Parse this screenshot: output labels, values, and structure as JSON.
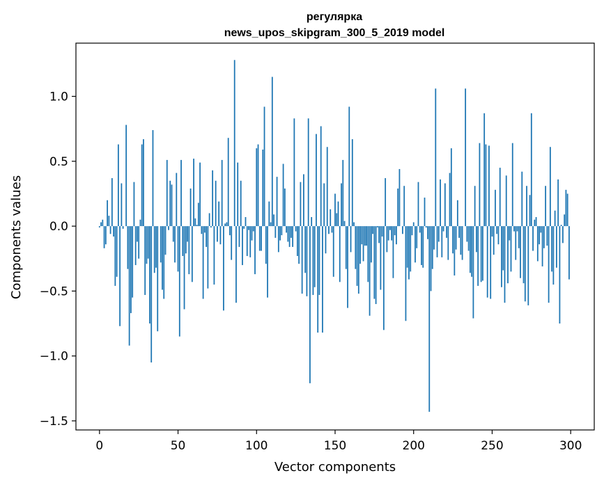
{
  "chart_data": {
    "type": "bar",
    "title": "регулярка",
    "subtitle": "news_upos_skipgram_300_5_2019 model",
    "xlabel": "Vector components",
    "ylabel": "Components values",
    "xlim": [
      -15,
      315
    ],
    "ylim": [
      -1.57,
      1.41
    ],
    "xticks": [
      0,
      50,
      100,
      150,
      200,
      250,
      300
    ],
    "xtick_labels": [
      "0",
      "50",
      "100",
      "150",
      "200",
      "250",
      "300"
    ],
    "yticks": [
      -1.5,
      -1.0,
      -0.5,
      0.0,
      0.5,
      1.0
    ],
    "ytick_labels": [
      "−1.5",
      "−1.0",
      "−0.5",
      "0.0",
      "0.5",
      "1.0"
    ],
    "grid": false,
    "bar_color": "#1f77b4",
    "x": "0..299 (vector component index)",
    "values": [
      -0.01,
      0.03,
      0.05,
      -0.17,
      -0.14,
      0.2,
      0.08,
      -0.06,
      0.37,
      -0.08,
      -0.46,
      -0.39,
      0.63,
      -0.77,
      0.33,
      -0.02,
      0.0,
      0.78,
      -0.33,
      -0.92,
      -0.67,
      -0.55,
      0.34,
      -0.3,
      -0.12,
      -0.25,
      0.05,
      0.63,
      0.67,
      -0.53,
      -0.29,
      -0.25,
      -0.75,
      -1.05,
      0.74,
      -0.36,
      -0.32,
      -0.81,
      0.0,
      -0.28,
      -0.49,
      -0.56,
      -0.22,
      0.51,
      -0.03,
      0.35,
      0.32,
      -0.12,
      -0.28,
      0.41,
      -0.35,
      -0.85,
      0.51,
      -0.23,
      -0.64,
      -0.21,
      -0.12,
      -0.37,
      0.29,
      -0.43,
      0.52,
      0.06,
      0.01,
      0.18,
      0.49,
      -0.06,
      -0.56,
      -0.05,
      -0.16,
      -0.48,
      0.1,
      -0.01,
      0.43,
      -0.45,
      0.35,
      -0.12,
      0.19,
      -0.14,
      0.51,
      -0.65,
      0.02,
      0.03,
      0.68,
      -0.07,
      -0.26,
      0.0,
      1.28,
      -0.59,
      0.49,
      -0.16,
      0.35,
      -0.3,
      -0.02,
      0.07,
      -0.23,
      -0.03,
      -0.24,
      -0.11,
      -0.04,
      -0.37,
      0.6,
      0.63,
      -0.19,
      -0.19,
      0.59,
      0.92,
      -0.29,
      -0.55,
      0.19,
      0.03,
      1.15,
      0.09,
      -0.09,
      0.38,
      -0.2,
      -0.11,
      -0.07,
      0.48,
      0.29,
      -0.05,
      -0.12,
      -0.16,
      -0.09,
      -0.16,
      0.83,
      -0.04,
      -0.23,
      -0.29,
      0.34,
      -0.52,
      0.4,
      -0.36,
      -0.54,
      0.83,
      -1.21,
      0.07,
      -0.53,
      -0.47,
      0.71,
      -0.82,
      -0.53,
      0.77,
      -0.82,
      0.33,
      -0.21,
      0.61,
      -0.06,
      0.13,
      -0.05,
      -0.39,
      0.25,
      0.1,
      0.19,
      -0.43,
      0.33,
      0.51,
      0.04,
      -0.33,
      -0.63,
      0.92,
      -0.2,
      0.67,
      0.03,
      -0.33,
      -0.46,
      -0.52,
      -0.29,
      -0.14,
      -0.27,
      -0.15,
      -0.15,
      -0.43,
      -0.69,
      -0.28,
      -0.06,
      -0.56,
      -0.6,
      -0.01,
      -0.13,
      -0.49,
      -0.08,
      -0.8,
      0.37,
      -0.2,
      -0.11,
      -0.03,
      -0.11,
      -0.4,
      -0.07,
      -0.14,
      0.29,
      0.44,
      0.0,
      -0.06,
      0.31,
      -0.73,
      -0.32,
      -0.41,
      -0.35,
      -0.07,
      0.03,
      -0.28,
      -0.17,
      0.34,
      -0.05,
      -0.3,
      -0.32,
      0.22,
      -0.01,
      -0.1,
      -1.43,
      -0.5,
      -0.33,
      -0.18,
      1.06,
      -0.24,
      -0.12,
      0.36,
      -0.24,
      -0.04,
      0.33,
      -0.09,
      -0.26,
      0.41,
      0.6,
      -0.21,
      -0.38,
      -0.18,
      0.2,
      -0.09,
      -0.22,
      -0.26,
      0.0,
      1.06,
      -0.12,
      -0.19,
      -0.36,
      -0.39,
      -0.71,
      0.31,
      -0.2,
      -0.46,
      0.64,
      -0.43,
      -0.42,
      0.87,
      0.63,
      -0.55,
      0.62,
      -0.56,
      -0.08,
      -0.22,
      0.28,
      -0.06,
      -0.14,
      0.45,
      -0.47,
      -0.34,
      -0.59,
      0.39,
      -0.44,
      -0.11,
      -0.35,
      0.64,
      -0.04,
      -0.26,
      -0.04,
      -0.17,
      -0.4,
      0.42,
      -0.44,
      -0.58,
      0.31,
      -0.61,
      0.24,
      0.87,
      -0.19,
      0.05,
      0.07,
      -0.27,
      -0.14,
      -0.05,
      -0.31,
      -0.17,
      0.31,
      -0.15,
      -0.59,
      0.61,
      -0.35,
      -0.45,
      0.12,
      -0.32,
      0.36,
      -0.75,
      0.01,
      -0.13,
      0.09,
      0.28,
      0.25,
      -0.41
    ]
  }
}
